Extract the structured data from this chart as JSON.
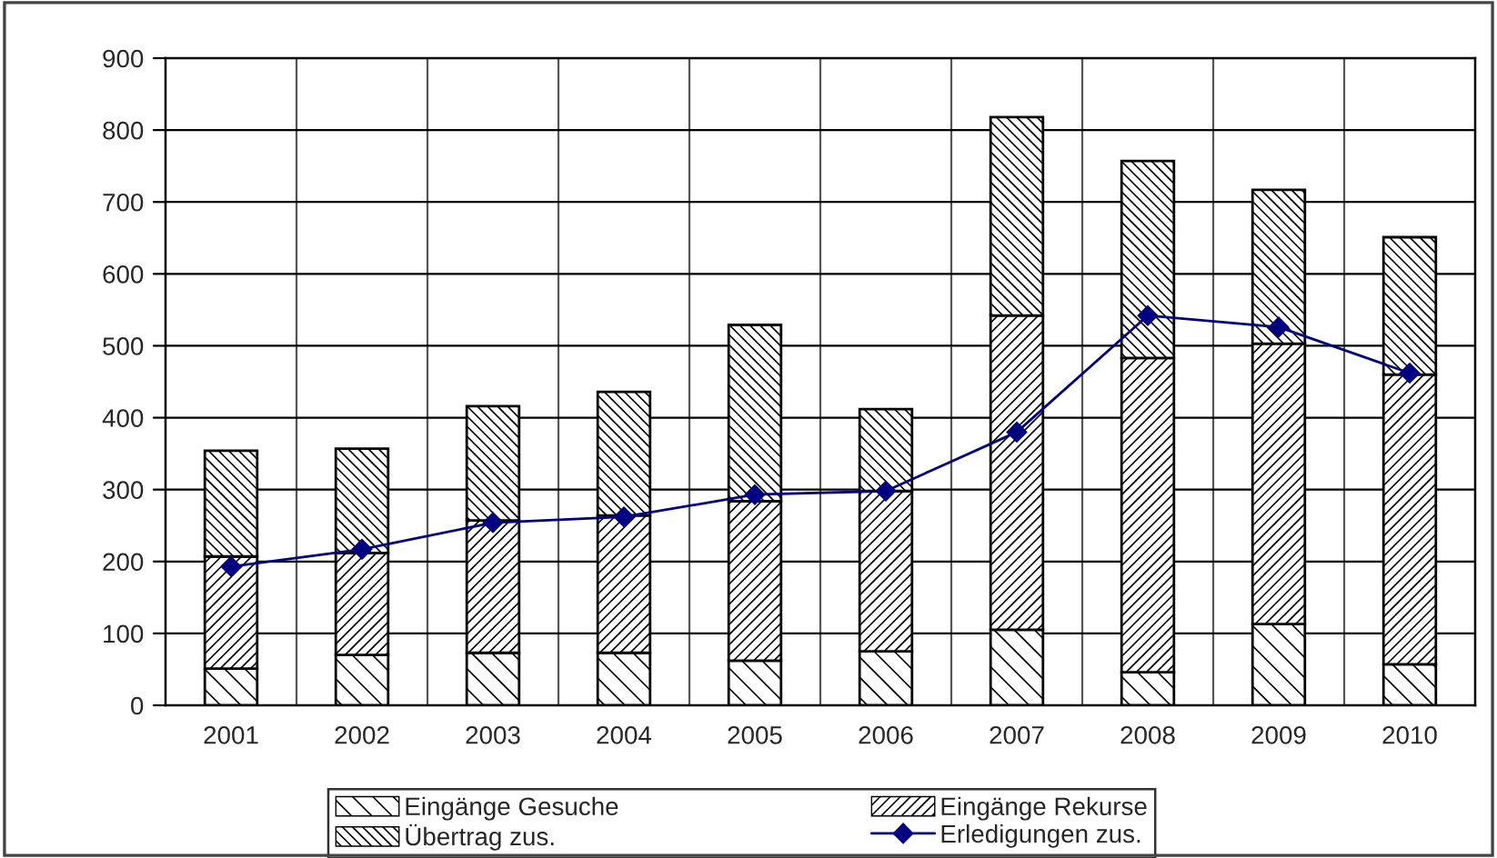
{
  "chart_data": {
    "type": "bar",
    "stacked": true,
    "categories": [
      "2001",
      "2002",
      "2003",
      "2004",
      "2005",
      "2006",
      "2007",
      "2008",
      "2009",
      "2010"
    ],
    "series": [
      {
        "name": "Eingänge Gesuche",
        "color": "#000000",
        "values": [
          51,
          70,
          73,
          73,
          62,
          75,
          105,
          46,
          113,
          57
        ]
      },
      {
        "name": "Eingänge Rekurse",
        "color": "#000000",
        "values": [
          156,
          142,
          184,
          191,
          222,
          223,
          437,
          437,
          390,
          403
        ]
      },
      {
        "name": "Übertrag zus.",
        "color": "#000000",
        "values": [
          147,
          145,
          159,
          172,
          245,
          114,
          276,
          274,
          214,
          191
        ]
      },
      {
        "name": "Erledigungen zus.",
        "type": "line",
        "color": "#000080",
        "marker": "diamond",
        "values": [
          193,
          217,
          254,
          262,
          293,
          298,
          380,
          542,
          526,
          462
        ]
      }
    ],
    "ylim": [
      0,
      900
    ],
    "yticks": [
      0,
      100,
      200,
      300,
      400,
      500,
      600,
      700,
      800,
      900
    ],
    "grid": true,
    "legend": "bottom"
  }
}
